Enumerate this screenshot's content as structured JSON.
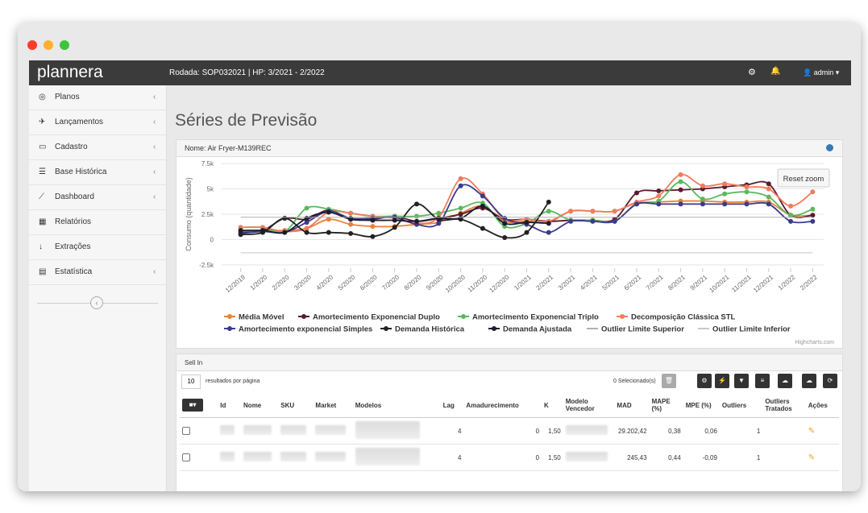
{
  "app": {
    "logo": "plannera",
    "run": "Rodada: SOP032021 | HP: 3/2021 - 2/2022",
    "user": "admin"
  },
  "sidebar": [
    "Planos",
    "Lançamentos",
    "Cadastro",
    "Base Histórica",
    "Dashboard",
    "Relatórios",
    "Extrações",
    "Estatística"
  ],
  "page_title": "Séries de Previsão",
  "panel_title": "Nome: Air Fryer-M139REC",
  "chart_data": {
    "type": "line",
    "y_label": "Consumo (quantidade)",
    "reset_zoom": "Reset zoom",
    "credits": "Highcharts.com",
    "categories": [
      "12/2019",
      "1/2020",
      "2/2020",
      "3/2020",
      "4/2020",
      "5/2020",
      "6/2020",
      "7/2020",
      "8/2020",
      "9/2020",
      "10/2020",
      "11/2020",
      "12/2020",
      "1/2021",
      "2/2021",
      "3/2021",
      "4/2021",
      "5/2021",
      "6/2021",
      "7/2021",
      "8/2021",
      "9/2021",
      "10/2021",
      "11/2021",
      "12/2021",
      "1/2022",
      "2/2022"
    ],
    "ylim": [
      -2500,
      7500
    ],
    "yticks": [
      {
        "value": -2500,
        "label": "-2.5k"
      },
      0,
      {
        "value": 2500,
        "label": "2.5k"
      },
      {
        "value": 5000,
        "label": "5k"
      },
      {
        "value": 7500,
        "label": "7.5k"
      }
    ],
    "grid": true,
    "series": [
      {
        "name": "Média Móvel",
        "color": "#e8803a",
        "values": [
          800,
          900,
          900,
          1100,
          2000,
          1500,
          1300,
          1300,
          1500,
          1700,
          2600,
          3300,
          1800,
          1800,
          1700,
          2800,
          2800,
          2800,
          3600,
          3700,
          3800,
          3800,
          3700,
          3700,
          3700,
          2400,
          2400
        ]
      },
      {
        "name": "Amortecimento Exponencial Duplo",
        "color": "#5b1a2e",
        "values": [
          700,
          900,
          2100,
          2000,
          2900,
          2000,
          2000,
          2300,
          1800,
          2100,
          2500,
          3100,
          2000,
          2000,
          1800,
          1900,
          1900,
          2000,
          4600,
          4800,
          4900,
          5000,
          5200,
          5400,
          5500,
          2400,
          2400
        ]
      },
      {
        "name": "Amortecimento Exponencial Triplo",
        "color": "#5cb85c",
        "values": [
          1200,
          1200,
          800,
          3100,
          3000,
          2600,
          2300,
          2300,
          2300,
          2600,
          3100,
          3600,
          1300,
          1600,
          2800,
          1900,
          1900,
          1800,
          3500,
          3800,
          5700,
          4000,
          4500,
          4700,
          4200,
          2400,
          3000
        ]
      },
      {
        "name": "Decomposição Clássica STL",
        "color": "#f07c5a",
        "values": [
          1200,
          1200,
          800,
          1100,
          2700,
          2600,
          2300,
          2100,
          1600,
          2200,
          6000,
          4500,
          2000,
          2000,
          1800,
          2800,
          2800,
          2800,
          3700,
          4300,
          6400,
          5300,
          5500,
          5200,
          5000,
          3300,
          4700
        ]
      },
      {
        "name": "Amortecimento exponencial Simples",
        "color": "#3b3b8c",
        "values": [
          600,
          800,
          700,
          1700,
          2800,
          2100,
          2100,
          2200,
          1500,
          1600,
          5300,
          4300,
          2100,
          1500,
          700,
          1800,
          1800,
          1800,
          3500,
          3500,
          3500,
          3500,
          3500,
          3500,
          3500,
          1800,
          1800
        ]
      },
      {
        "name": "Demanda Histórica",
        "color": "#222222",
        "values": [
          500,
          700,
          2100,
          700,
          700,
          600,
          300,
          1200,
          3500,
          2000,
          2000,
          1100,
          200,
          700,
          3700,
          null,
          null,
          null,
          null,
          null,
          null,
          null,
          null,
          null,
          null,
          null,
          null
        ]
      },
      {
        "name": "Demanda Ajustada",
        "color": "#1c1c30",
        "values": [
          900,
          900,
          700,
          2100,
          2700,
          2000,
          1900,
          1900,
          1800,
          2100,
          2100,
          3300,
          1600,
          1700,
          1600,
          null,
          null,
          null,
          null,
          null,
          null,
          null,
          null,
          null,
          null,
          null,
          null
        ]
      },
      {
        "name": "Outlier Limite Superior",
        "color": "#b0b0b0",
        "marker": false,
        "values": [
          2200,
          2200,
          2200,
          2200,
          2200,
          2200,
          2200,
          2200,
          2200,
          2200,
          2200,
          2200,
          2200,
          2200,
          2200,
          2200,
          2200,
          2200,
          2200,
          2200,
          2200,
          2200,
          2200,
          2200,
          2200,
          2200,
          2200
        ]
      },
      {
        "name": "Outlier Limite Inferior",
        "color": "#c8c8c8",
        "marker": false,
        "values": [
          -1300,
          -1300,
          -1300,
          -1300,
          -1300,
          -1300,
          -1300,
          -1300,
          -1300,
          -1300,
          -1300,
          -1300,
          -1300,
          -1300,
          -1300,
          -1300,
          -1300,
          -1300,
          -1300,
          -1300,
          -1300,
          -1300,
          -1300,
          -1300,
          -1300,
          -1300,
          -1300
        ]
      }
    ]
  },
  "table_panel": {
    "title": "Sell In",
    "page_size": "10",
    "page_size_label": "resultados por página",
    "selected": "0 Selecionado(s)",
    "columns": [
      "Id",
      "Nome",
      "SKU",
      "Market",
      "Modelos",
      "Lag",
      "Amadurecimento",
      "K",
      "Modelo Vencedor",
      "MAD",
      "MAPE (%)",
      "MPE (%)",
      "Outliers",
      "Outliers Tratados",
      "Ações"
    ],
    "rows": [
      [
        null,
        null,
        null,
        null,
        null,
        "4",
        "0",
        "1,50",
        null,
        "29.202,42",
        "0,38",
        "0,06",
        "1",
        null,
        null
      ],
      [
        null,
        null,
        null,
        null,
        null,
        "4",
        "0",
        "1,50",
        null,
        "245,43",
        "0,44",
        "-0,09",
        "1",
        null,
        null
      ]
    ]
  }
}
